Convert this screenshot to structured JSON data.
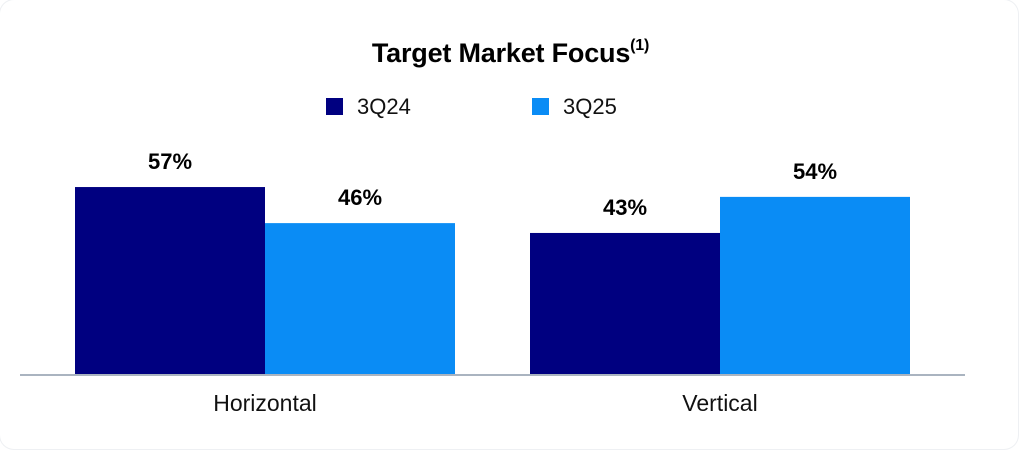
{
  "chart_data": {
    "type": "bar",
    "title": "Target Market Focus",
    "title_superscript": "(1)",
    "categories": [
      "Horizontal",
      "Vertical"
    ],
    "series": [
      {
        "name": "3Q24",
        "values": [
          57,
          43
        ],
        "labels": [
          "57%",
          "43%"
        ],
        "color": "#000080"
      },
      {
        "name": "3Q25",
        "values": [
          46,
          54
        ],
        "labels": [
          "46%",
          "54%"
        ],
        "color": "#0a8cf5"
      }
    ],
    "ylim": [
      0,
      100
    ],
    "grid": false,
    "legend": "top-center",
    "axis_color": "#aab4c0"
  }
}
